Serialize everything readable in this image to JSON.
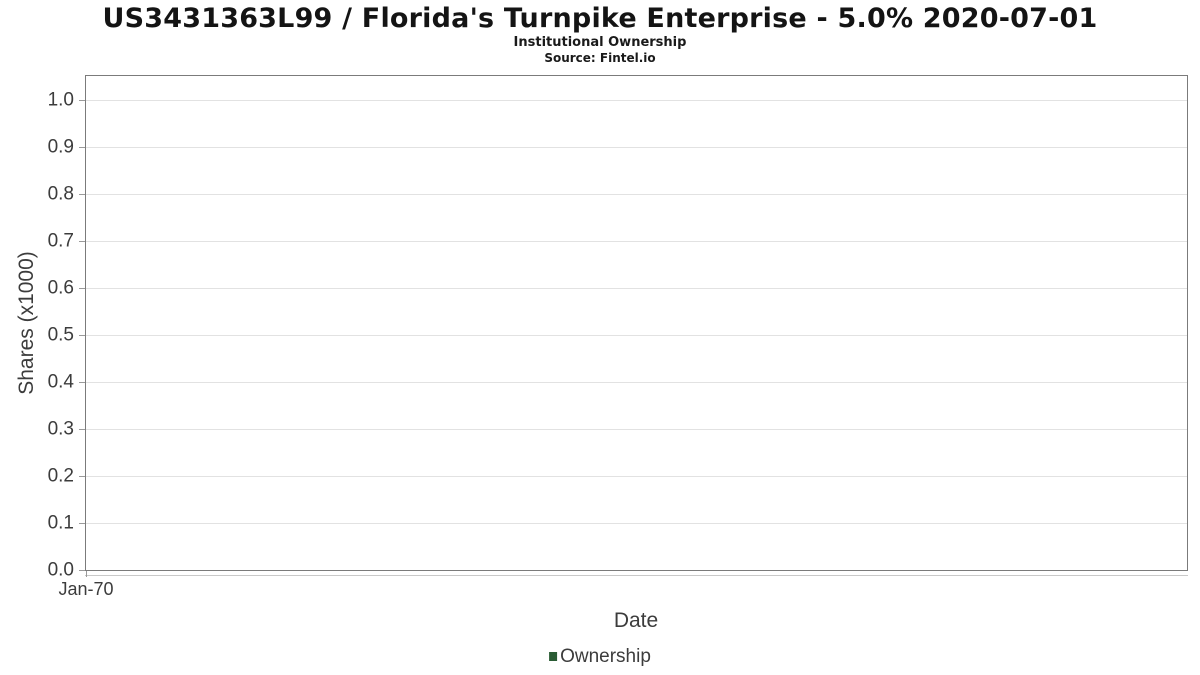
{
  "chart_data": {
    "type": "line",
    "title": "US3431363L99 / Florida's Turnpike Enterprise - 5.0% 2020-07-01",
    "subtitle": "Institutional Ownership",
    "source": "Source: Fintel.io",
    "xlabel": "Date",
    "ylabel": "Shares (x1000)",
    "ylim": [
      0.0,
      1.05
    ],
    "yticks": [
      "0.0",
      "0.1",
      "0.2",
      "0.3",
      "0.4",
      "0.5",
      "0.6",
      "0.7",
      "0.8",
      "0.9",
      "1.0"
    ],
    "xticks": [
      "Jan-70"
    ],
    "xtick_fracs": [
      0.0
    ],
    "grid": "horizontal",
    "legend_position": "bottom-center",
    "series": [
      {
        "name": "Ownership",
        "color": "#2a5c34",
        "x": [],
        "values": []
      }
    ]
  }
}
